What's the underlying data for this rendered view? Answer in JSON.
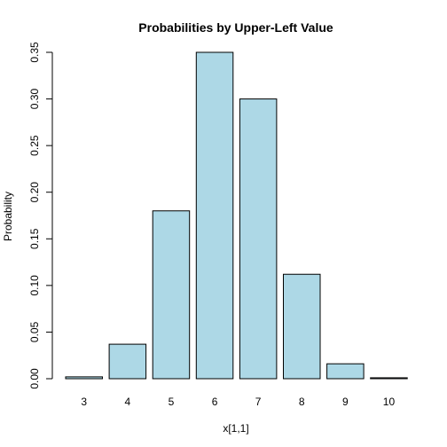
{
  "chart_data": {
    "type": "bar",
    "title": "Probabilities by Upper-Left Value",
    "xlabel": "x[1,1]",
    "ylabel": "Probability",
    "categories": [
      "3",
      "4",
      "5",
      "6",
      "7",
      "8",
      "9",
      "10"
    ],
    "values": [
      0.002,
      0.037,
      0.18,
      0.35,
      0.3,
      0.112,
      0.016,
      0.001
    ],
    "ylim": [
      0,
      0.35
    ],
    "yticks": [
      "0.00",
      "0.05",
      "0.10",
      "0.15",
      "0.20",
      "0.25",
      "0.30",
      "0.35"
    ],
    "bar_color": "#add8e6",
    "bar_border": "#000000",
    "grid": false,
    "legend": "none"
  }
}
